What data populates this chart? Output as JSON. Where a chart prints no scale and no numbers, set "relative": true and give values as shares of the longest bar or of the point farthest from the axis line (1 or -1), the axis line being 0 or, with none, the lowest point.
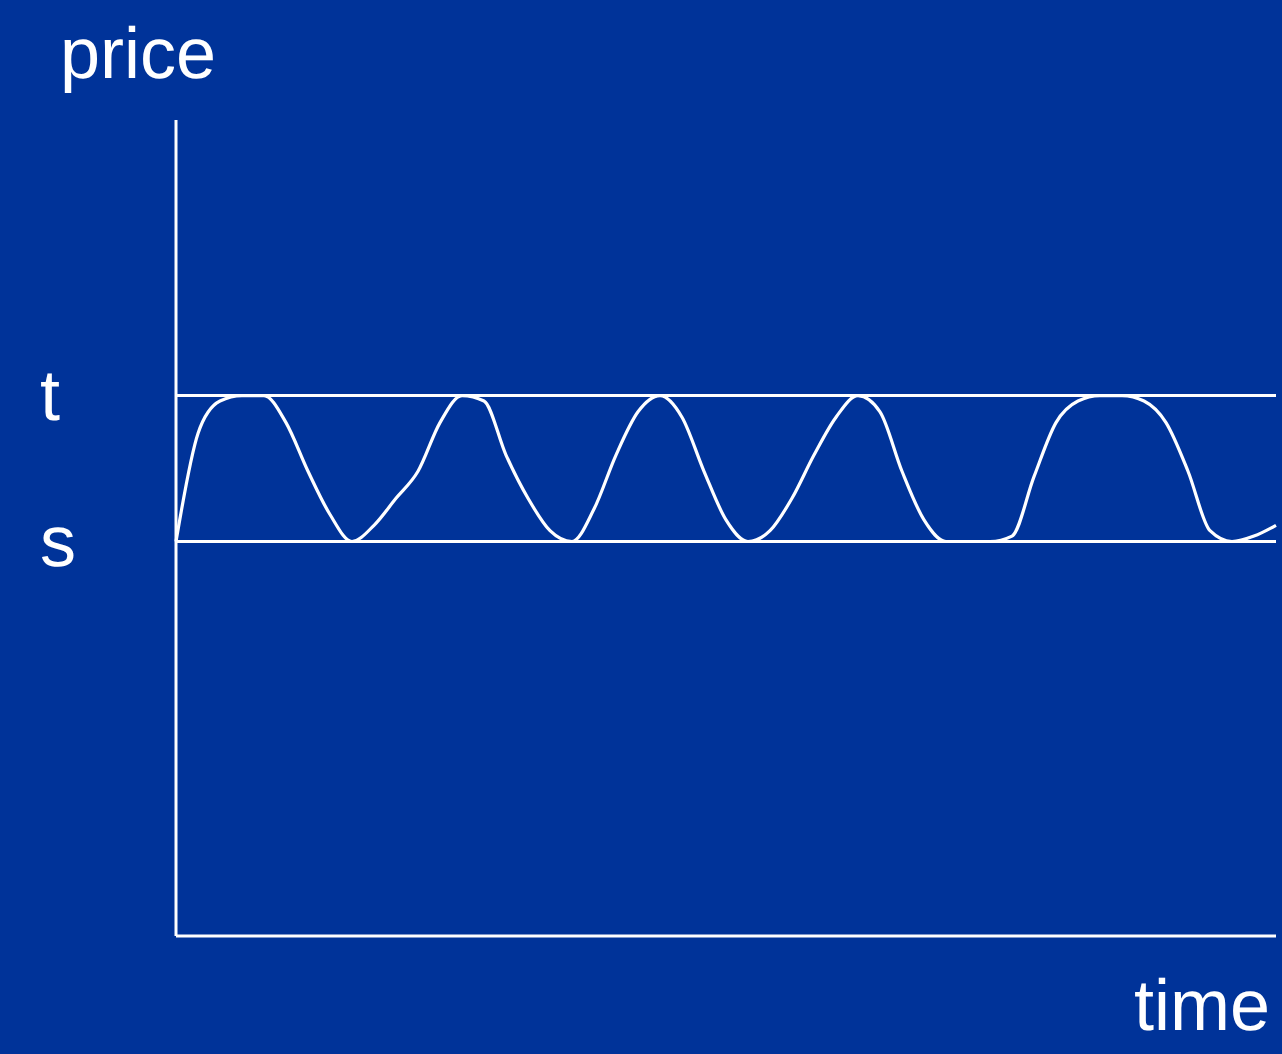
{
  "chart_data": {
    "type": "line",
    "xlabel": "time",
    "ylabel": "price",
    "relative": true,
    "categories": [
      null,
      null,
      null,
      null,
      null,
      null,
      null,
      null,
      null,
      null,
      null,
      null,
      null,
      null,
      null,
      null,
      null,
      null,
      null,
      null,
      null,
      null,
      null,
      null,
      null,
      null,
      null,
      null,
      null,
      null,
      null,
      null,
      null,
      null,
      null,
      null,
      null,
      null,
      null,
      null,
      null,
      null,
      null,
      null,
      null,
      null,
      null,
      null,
      null,
      null,
      null
    ],
    "series": [
      {
        "color": "#ffffff",
        "values": [
          0.73,
          0.93,
          0.99,
          1,
          1,
          0.95,
          0.86,
          0.78,
          0.73,
          0.76,
          0.81,
          0.86,
          0.95,
          1,
          0.99,
          0.89,
          0.81,
          0.75,
          0.73,
          0.79,
          0.89,
          0.97,
          1,
          0.96,
          0.86,
          0.77,
          0.73,
          0.75,
          0.81,
          0.89,
          0.96,
          1,
          0.97,
          0.86,
          0.77,
          0.73,
          0.73,
          0.73,
          0.74,
          0.85,
          0.95,
          0.99,
          1,
          1,
          0.99,
          0.95,
          0.86,
          0.75,
          0.73,
          0.74,
          0.76
        ]
      }
    ],
    "ref_lines": [
      {
        "axis": "y",
        "value": 1,
        "label": "t",
        "color": "#ffffff"
      },
      {
        "axis": "y",
        "value": 0.73,
        "label": "s",
        "color": "#ffffff"
      }
    ]
  }
}
